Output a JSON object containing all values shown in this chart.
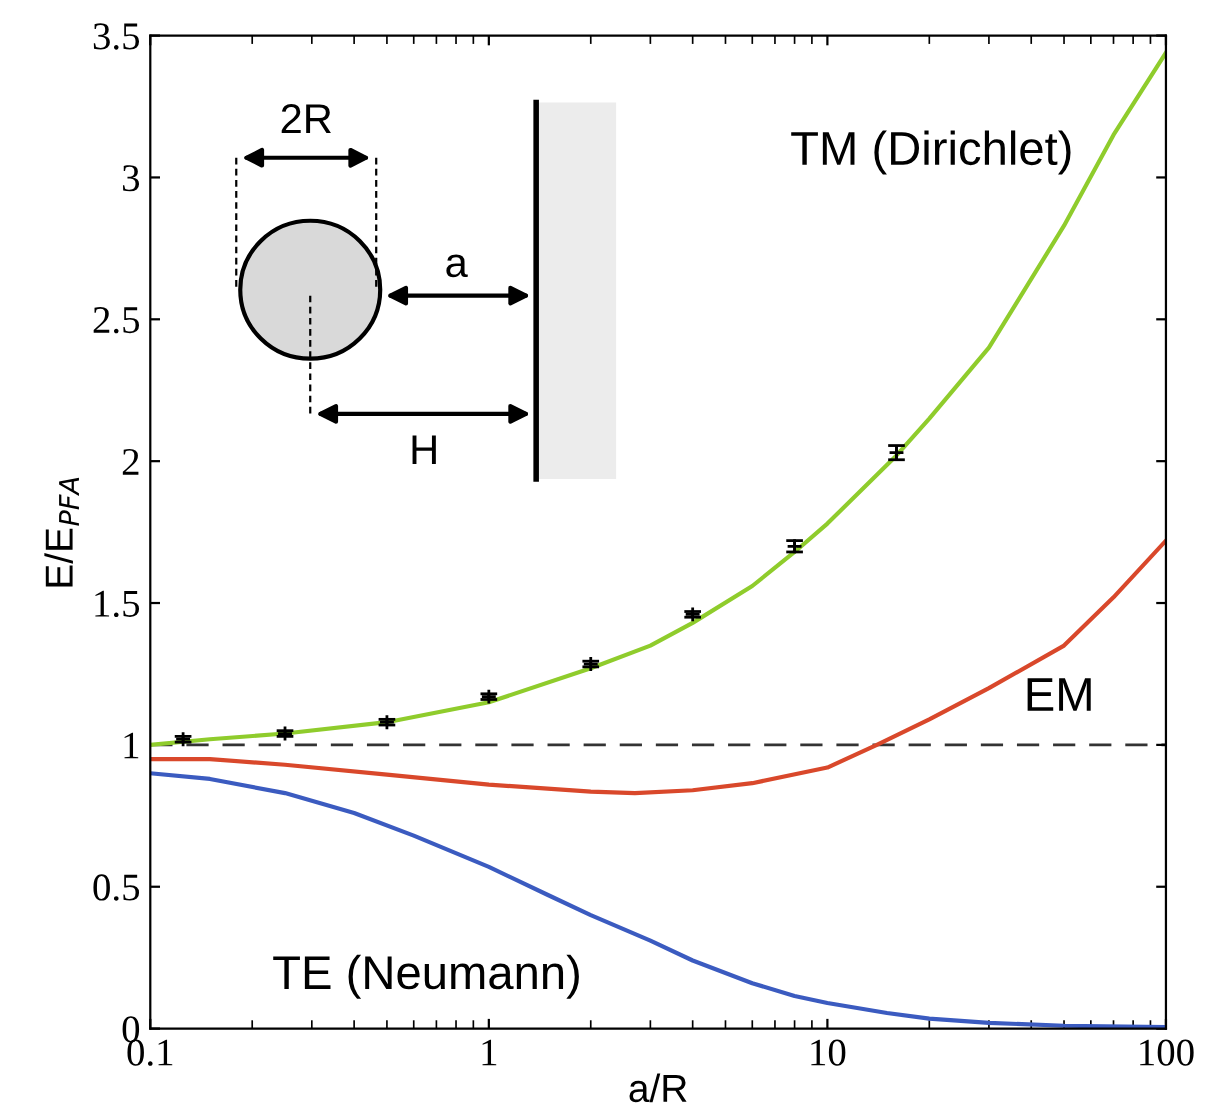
{
  "chart_data": {
    "type": "line",
    "xlabel": "a/R",
    "ylabel": "E/E$_{PFA}$",
    "log": "x",
    "xlim": [
      0.1,
      100
    ],
    "xticks": [
      0.1,
      1,
      10,
      100
    ],
    "ylim": [
      0,
      3.5
    ],
    "yticks": [
      0,
      0.5,
      1,
      1.5,
      2,
      2.5,
      3,
      3.5
    ],
    "grid": false,
    "legend": false,
    "series": [
      {
        "name": "TM (Dirichlet)",
        "color": "#8fcc2c",
        "x": [
          0.1,
          0.15,
          0.25,
          0.5,
          1,
          2,
          3,
          4,
          6,
          8,
          10,
          16,
          20,
          30,
          50,
          70,
          100
        ],
        "values": [
          1.0,
          1.02,
          1.04,
          1.08,
          1.15,
          1.27,
          1.35,
          1.43,
          1.56,
          1.68,
          1.78,
          2.02,
          2.15,
          2.4,
          2.83,
          3.15,
          3.44
        ]
      },
      {
        "name": "EM",
        "color": "#d9482b",
        "x": [
          0.1,
          0.15,
          0.25,
          0.5,
          1,
          2,
          2.7,
          4,
          6,
          10,
          14,
          20,
          30,
          50,
          70,
          100
        ],
        "values": [
          0.95,
          0.95,
          0.93,
          0.895,
          0.86,
          0.835,
          0.83,
          0.84,
          0.865,
          0.92,
          1.0,
          1.09,
          1.2,
          1.35,
          1.52,
          1.72
        ]
      },
      {
        "name": "TE (Neumann)",
        "color": "#3b5bc0",
        "x": [
          0.1,
          0.15,
          0.25,
          0.4,
          0.6,
          1,
          1.5,
          2,
          3,
          4,
          6,
          8,
          10,
          15,
          20,
          30,
          50,
          100
        ],
        "values": [
          0.9,
          0.88,
          0.83,
          0.76,
          0.68,
          0.57,
          0.47,
          0.4,
          0.31,
          0.24,
          0.16,
          0.115,
          0.09,
          0.055,
          0.035,
          0.02,
          0.01,
          0.005
        ]
      },
      {
        "type": "scatter",
        "color": "#000000",
        "marker": "cross",
        "x": [
          0.125,
          0.25,
          0.5,
          1,
          2,
          4,
          8,
          16
        ],
        "values": [
          1.02,
          1.04,
          1.08,
          1.17,
          1.285,
          1.46,
          1.7,
          2.03
        ],
        "errors": [
          0.01,
          0.01,
          0.01,
          0.01,
          0.01,
          0.01,
          0.02,
          0.025
        ]
      }
    ],
    "ref_lines": [
      {
        "axis": "y",
        "value": 1,
        "color": "#333333",
        "line_style": "dashed"
      }
    ],
    "annotations": [
      "2R",
      "a",
      "H"
    ]
  }
}
